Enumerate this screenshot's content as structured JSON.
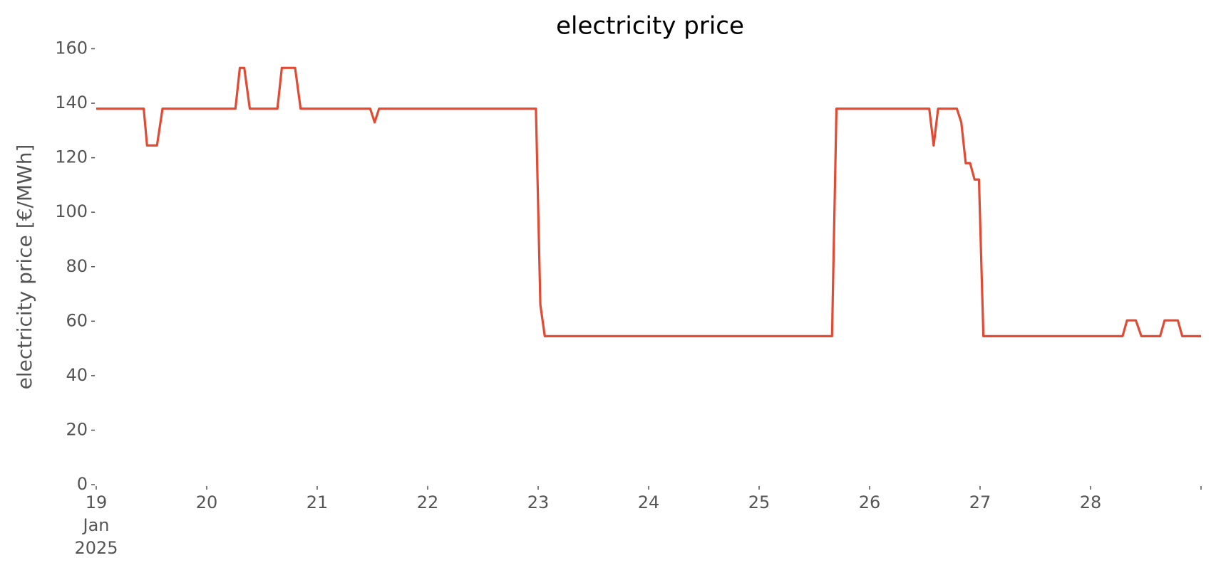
{
  "chart_data": {
    "type": "line",
    "title": "electricity price",
    "y_label": "electricity price [€/MWh]",
    "xlim": [
      19,
      29
    ],
    "xticks": [
      {
        "value": 19,
        "label": "19\nJan\n2025"
      },
      20,
      21,
      22,
      23,
      24,
      25,
      26,
      27,
      28,
      {
        "value": 29,
        "label": null
      }
    ],
    "ylim": [
      0,
      160
    ],
    "yticks": [
      0,
      20,
      40,
      60,
      80,
      100,
      120,
      140,
      160
    ],
    "grid": false,
    "series": [
      {
        "name": "electricity price",
        "color": "#e24a33",
        "x": [
          19.0,
          19.43,
          19.46,
          19.55,
          19.6,
          20.26,
          20.3,
          20.34,
          20.39,
          20.64,
          20.68,
          20.8,
          20.85,
          21.48,
          21.52,
          21.56,
          22.98,
          23.02,
          23.06,
          25.66,
          25.7,
          26.54,
          26.58,
          26.62,
          26.79,
          26.83,
          26.87,
          26.91,
          26.95,
          26.99,
          27.03,
          28.29,
          28.33,
          28.41,
          28.46,
          28.63,
          28.67,
          28.79,
          28.83,
          29.0
        ],
        "values": [
          138,
          138,
          124.5,
          124.5,
          138,
          138,
          153,
          153,
          138,
          138,
          153,
          153,
          138,
          138,
          133,
          138,
          138,
          66,
          54.5,
          54.5,
          138,
          138,
          124.5,
          138,
          138,
          133,
          118,
          118,
          112,
          112,
          54.5,
          54.5,
          60.3,
          60.3,
          54.5,
          54.5,
          60.3,
          60.3,
          54.5,
          54.5
        ]
      }
    ]
  }
}
